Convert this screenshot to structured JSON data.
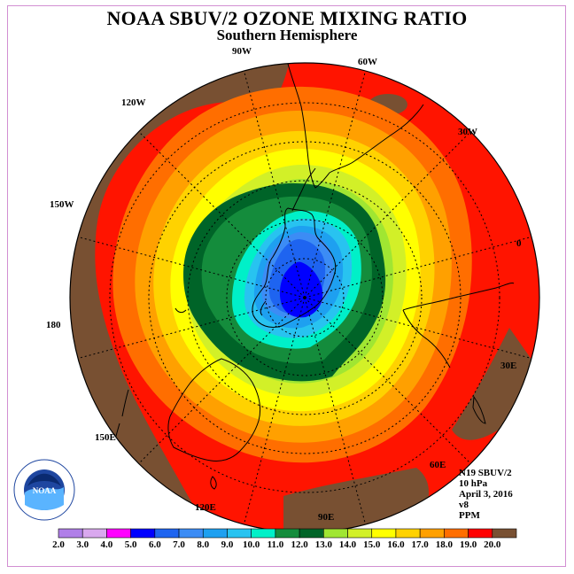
{
  "title": "NOAA SBUV/2 OZONE MIXING RATIO",
  "subtitle": "Southern Hemisphere",
  "logo": {
    "name": "NOAA",
    "ring_text": "NATIONAL OCEANIC AND ATMOSPHERIC ADMINISTRATION · U.S. DEPARTMENT OF COMMERCE"
  },
  "longitude_labels": [
    {
      "id": "lon-90w",
      "text": "90W"
    },
    {
      "id": "lon-60w",
      "text": "60W"
    },
    {
      "id": "lon-120w",
      "text": "120W"
    },
    {
      "id": "lon-30w",
      "text": "30W"
    },
    {
      "id": "lon-150w",
      "text": "150W"
    },
    {
      "id": "lon-0",
      "text": "0"
    },
    {
      "id": "lon-180",
      "text": "180"
    },
    {
      "id": "lon-30e",
      "text": "30E"
    },
    {
      "id": "lon-150e",
      "text": "150E"
    },
    {
      "id": "lon-60e",
      "text": "60E"
    },
    {
      "id": "lon-120e",
      "text": "120E"
    },
    {
      "id": "lon-90e",
      "text": "90E"
    }
  ],
  "info": {
    "satellite": "N19 SBUV/2",
    "level": "10 hPa",
    "date": "April 3, 2016",
    "version": "v8",
    "units": "PPM"
  },
  "colorbar": {
    "ticks": [
      "2.0",
      "3.0",
      "4.0",
      "5.0",
      "6.0",
      "7.0",
      "8.0",
      "9.0",
      "10.0",
      "11.0",
      "12.0",
      "13.0",
      "14.0",
      "15.0",
      "16.0",
      "17.0",
      "18.0",
      "19.0",
      "20.0"
    ],
    "colors": [
      "#b07fe8",
      "#d9a8ee",
      "#ff00ff",
      "#0000ff",
      "#1e64f0",
      "#3c8cf5",
      "#1ea0f0",
      "#28c3f0",
      "#00f0c8",
      "#148c3c",
      "#006428",
      "#a0e632",
      "#d2f028",
      "#ffff00",
      "#ffd200",
      "#ffa000",
      "#ff6e00",
      "#ff0000",
      "#785032"
    ]
  },
  "map_colors": {
    "brown": "#785032",
    "red": "#ff1400",
    "orange_red": "#ff6e00",
    "orange": "#ffa000",
    "gold": "#ffd200",
    "yellow": "#ffff00",
    "yellow_green": "#d2f028",
    "lime": "#a0e632",
    "dark_green": "#006428",
    "green": "#148c3c",
    "cyan_green": "#00f0c8",
    "light_blue": "#28c3f0",
    "sky_blue": "#1ea0f0",
    "blue": "#3c8cf5",
    "royal_blue": "#1e64f0",
    "deep_blue": "#0000ff"
  }
}
